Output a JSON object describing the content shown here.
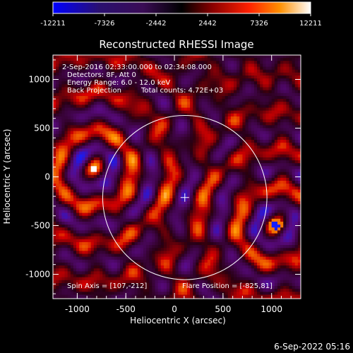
{
  "colorbar": {
    "ticks": [
      "-12211",
      "-7326",
      "-2442",
      "2442",
      "7326",
      "12211"
    ],
    "tick_values": [
      -12211,
      -7326,
      -2442,
      2442,
      7326,
      12211
    ],
    "range": [
      -12211,
      12211
    ],
    "colors": [
      "#0000ff",
      "#ff0000",
      "#ffffff"
    ]
  },
  "footer": {
    "timestamp": "6-Sep-2022 05:16"
  },
  "chart_data": {
    "type": "heatmap",
    "title": "Reconstructed RHESSI Image",
    "xlabel": "Heliocentric X (arcsec)",
    "ylabel": "Heliocentric Y (arcsec)",
    "xlim": [
      -1250,
      1300
    ],
    "ylim": [
      -1250,
      1250
    ],
    "xticks": [
      -1000,
      -500,
      0,
      500,
      1000
    ],
    "xtick_labels": [
      "-1000",
      "-500",
      "0",
      "500",
      "1000"
    ],
    "yticks": [
      -1000,
      -500,
      0,
      500,
      1000
    ],
    "ytick_labels": [
      "-1000",
      "-500",
      "0",
      "500",
      "1000"
    ],
    "annotations": {
      "time_range": "2-Sep-2016 02:33:00.000 to 02:34:08.000",
      "detectors": "Detectors: 8F, Att 0",
      "energy": "Energy Range: 6.0 - 12.0 keV",
      "method": "Back Projection",
      "counts": "Total counts: 4.72E+03",
      "spin_axis": "Spin Axis = [107,-212]",
      "flare_position": "Flare Position = [-825,81]"
    },
    "solar_limb": {
      "center": [
        107,
        -212
      ],
      "radius": 845
    },
    "sources": [
      {
        "x": -825,
        "y": 81,
        "kind": "peak"
      },
      {
        "x": 1040,
        "y": -500,
        "kind": "peak"
      }
    ],
    "colors": {
      "background": "#000000",
      "limb": "#ffffff",
      "text": "#ffffff"
    }
  }
}
